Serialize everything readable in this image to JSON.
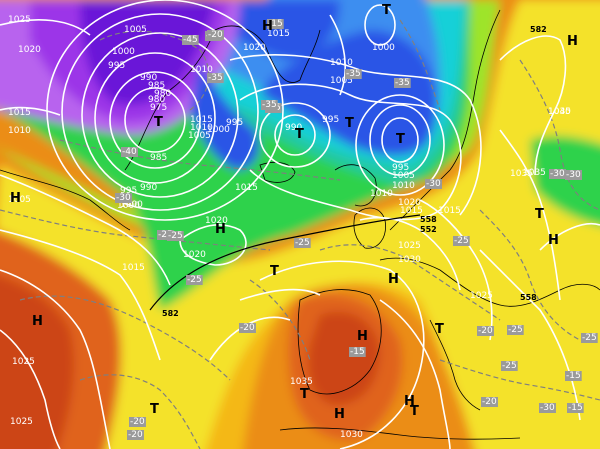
{
  "map": {
    "type": "weather-analysis",
    "field_shading": "500 hPa geopotential (colour bands)",
    "isobar_color": "#ffffff",
    "isotherm_color": "#808080",
    "coast_color": "#000000"
  },
  "colors": {
    "deep_violet": "#6b18d8",
    "violet": "#9c35e8",
    "light_violet": "#b864ee",
    "blue": "#2a55e6",
    "sky_blue": "#3d8ef0",
    "cyan": "#18d0d8",
    "teal": "#23c9a3",
    "green": "#2fd24c",
    "yellow_green": "#9ee42a",
    "yellow": "#f4e22a",
    "light_orange": "#f4b818",
    "orange": "#eb8d16",
    "dark_orange": "#e0631c",
    "red_orange": "#cc4418",
    "brick_red": "#b83016"
  },
  "pressure_labels": [
    "1025",
    "1020",
    "1015",
    "1010",
    "1005",
    "1000",
    "995",
    "990",
    "985",
    "980",
    "975",
    "1020",
    "1015",
    "1010",
    "1005",
    "1000",
    "995",
    "990",
    "985",
    "980",
    "1015",
    "1000",
    "1015",
    "1010",
    "1005",
    "1000",
    "995",
    "990",
    "1000",
    "1005",
    "1010",
    "1015",
    "1020",
    "1035",
    "1045",
    "1015",
    "1020",
    "1025",
    "1030",
    "1025",
    "1030",
    "1035",
    "1025",
    "1025",
    "1015",
    "1020",
    "1035",
    "1030",
    "1010",
    "1010",
    "1005",
    "995",
    "995"
  ],
  "temperature_labels": [
    "-45",
    "-40",
    "-40",
    "-35",
    "-35",
    "-30",
    "-30",
    "-30",
    "-25",
    "-25",
    "-20",
    "-20",
    "-20",
    "-15",
    "-15",
    "-25",
    "-35",
    "-25",
    "-30",
    "-15",
    "-20",
    "-15",
    "-20",
    "-25",
    "-25",
    "-25",
    "-25",
    "-35",
    "-35",
    "-30",
    "-20"
  ],
  "pressure_centers": [
    "H",
    "H",
    "H",
    "H",
    "H",
    "H",
    "H",
    "H",
    "T",
    "T",
    "T",
    "T",
    "T",
    "T",
    "T",
    "T",
    "T",
    "T",
    "T",
    "H",
    "H"
  ],
  "station_marks": [
    "582",
    "582",
    "558",
    "558",
    "552"
  ]
}
